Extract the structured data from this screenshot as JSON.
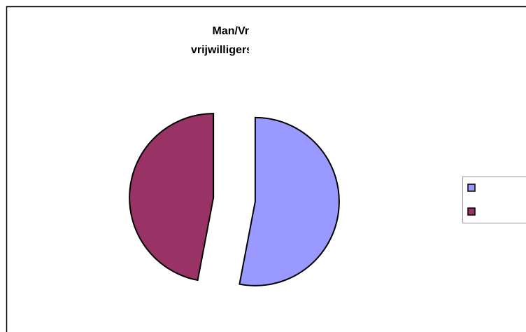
{
  "chart_data": {
    "type": "pie",
    "title": [
      "Man/Vr",
      "vrijwilligers"
    ],
    "values": [
      53,
      47
    ],
    "colors": [
      "#9999ff",
      "#993366"
    ],
    "exploded": true,
    "legend": "right"
  }
}
